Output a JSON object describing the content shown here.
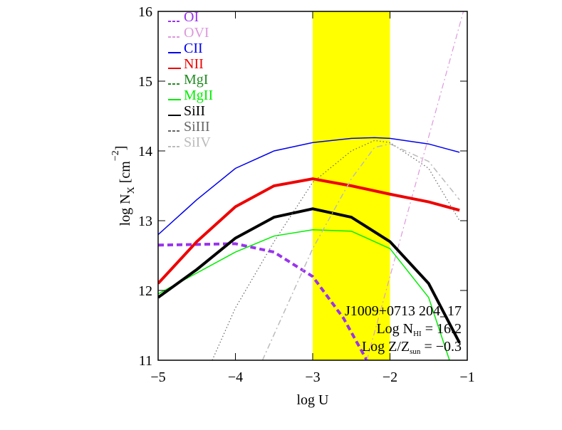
{
  "chart_data": {
    "type": "line",
    "xlabel": "log U",
    "ylabel": [
      "log N",
      "X",
      " [cm",
      "−2",
      "]"
    ],
    "xlim": [
      -5,
      -1
    ],
    "ylim": [
      11,
      16
    ],
    "xticks": [
      {
        "value": -5,
        "label": "−5"
      },
      {
        "value": -4,
        "label": "−4"
      },
      {
        "value": -3,
        "label": "−3"
      },
      {
        "value": -2,
        "label": "−2"
      },
      {
        "value": -1,
        "label": "−1"
      }
    ],
    "yticks": [
      11,
      12,
      13,
      14,
      15,
      16
    ],
    "band": {
      "x": [
        -3,
        -2
      ],
      "color": "#ffff00"
    },
    "annotations": [
      [
        "J1009+0713 204_17"
      ],
      [
        "Log N",
        "HI",
        " = 16.2"
      ],
      [
        "Log Z/Z",
        "sun",
        " = −0.3"
      ]
    ],
    "series": [
      {
        "name": "OI",
        "color": "#9933ee",
        "dash": "dash",
        "width": 4,
        "x": [
          -5,
          -4.5,
          -4,
          -3.5,
          -3,
          -2.6,
          -2.3
        ],
        "values": [
          12.65,
          12.66,
          12.67,
          12.55,
          12.2,
          11.6,
          11.0
        ]
      },
      {
        "name": "OVI",
        "color": "#dd99dd",
        "dash": "dashdot",
        "width": 1.2,
        "x": [
          -2.3,
          -2,
          -1.6,
          -1.3,
          -1.05
        ],
        "values": [
          11.0,
          12.2,
          13.8,
          15.0,
          16.0
        ]
      },
      {
        "name": "CII",
        "color": "#0000ee",
        "dash": "solid",
        "width": 1.5,
        "x": [
          -5,
          -4.5,
          -4,
          -3.5,
          -3,
          -2.5,
          -2.2,
          -2,
          -1.5,
          -1.1
        ],
        "values": [
          12.8,
          13.3,
          13.75,
          14.0,
          14.12,
          14.18,
          14.19,
          14.18,
          14.1,
          13.98
        ]
      },
      {
        "name": "NII",
        "color": "#ee0000",
        "dash": "solid",
        "width": 4,
        "x": [
          -5,
          -4.5,
          -4,
          -3.5,
          -3,
          -2.5,
          -2,
          -1.5,
          -1.1
        ],
        "values": [
          12.1,
          12.7,
          13.2,
          13.5,
          13.6,
          13.5,
          13.38,
          13.27,
          13.15
        ]
      },
      {
        "name": "MgI",
        "color": "#228b22",
        "dash": "dash",
        "width": 1.5,
        "x": [
          -5,
          -1.1
        ],
        "values": [
          null,
          null
        ]
      },
      {
        "name": "MgII",
        "color": "#00ee00",
        "dash": "solid",
        "width": 1.5,
        "x": [
          -5,
          -4.5,
          -4,
          -3.5,
          -3,
          -2.5,
          -2,
          -1.5,
          -1.23
        ],
        "values": [
          11.95,
          12.25,
          12.55,
          12.78,
          12.87,
          12.85,
          12.6,
          11.9,
          11.0
        ]
      },
      {
        "name": "SiII",
        "color": "#000000",
        "dash": "solid",
        "width": 4,
        "x": [
          -5,
          -4.5,
          -4,
          -3.5,
          -3,
          -2.5,
          -2,
          -1.5,
          -1.1
        ],
        "values": [
          11.9,
          12.3,
          12.75,
          13.05,
          13.17,
          13.05,
          12.7,
          12.1,
          11.25
        ]
      },
      {
        "name": "SiIII",
        "color": "#666666",
        "dash": "dot",
        "width": 1.2,
        "x": [
          -4.3,
          -4,
          -3.5,
          -3,
          -2.5,
          -2.2,
          -2,
          -1.5,
          -1.1
        ],
        "values": [
          11.0,
          11.75,
          12.7,
          13.55,
          14.0,
          14.15,
          14.12,
          13.75,
          13.0
        ]
      },
      {
        "name": "SiIV",
        "color": "#bbbbbb",
        "dash": "dashdot",
        "width": 1.5,
        "x": [
          -3.65,
          -3,
          -2.5,
          -2.2,
          -2,
          -1.5,
          -1.1
        ],
        "values": [
          11.0,
          12.6,
          13.6,
          14.05,
          14.1,
          13.85,
          13.3
        ]
      }
    ]
  }
}
